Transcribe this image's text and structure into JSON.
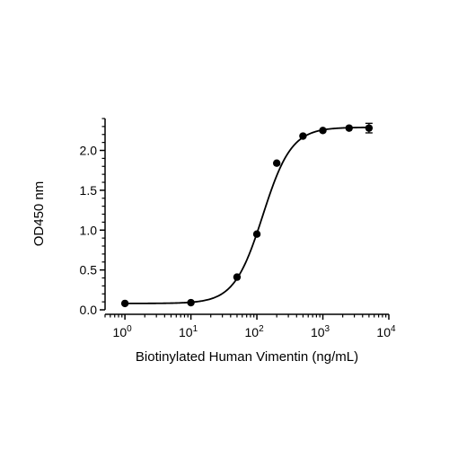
{
  "chart_data": {
    "type": "scatter",
    "title": "",
    "xlabel": "Biotinylated Human Vimentin (ng/mL)",
    "ylabel": "OD450 nm",
    "x_scale": "log",
    "xlim": [
      0.5,
      10000
    ],
    "ylim": [
      0,
      2.4
    ],
    "x_ticks": [
      {
        "value": 1,
        "base": "10",
        "exp": "0"
      },
      {
        "value": 10,
        "base": "10",
        "exp": "1"
      },
      {
        "value": 100,
        "base": "10",
        "exp": "2"
      },
      {
        "value": 1000,
        "base": "10",
        "exp": "3"
      },
      {
        "value": 10000,
        "base": "10",
        "exp": "4"
      }
    ],
    "y_ticks": [
      {
        "value": 0,
        "label": "0.0"
      },
      {
        "value": 0.5,
        "label": "0.5"
      },
      {
        "value": 1.0,
        "label": "1.0"
      },
      {
        "value": 1.5,
        "label": "1.5"
      },
      {
        "value": 2.0,
        "label": "2.0"
      }
    ],
    "grid": false,
    "series": [
      {
        "x": [
          1,
          10,
          50,
          100,
          200,
          500,
          1000,
          2500,
          5000
        ],
        "y": [
          0.08,
          0.09,
          0.41,
          0.95,
          1.84,
          2.18,
          2.25,
          2.28,
          2.28
        ],
        "error": [
          0.01,
          0.01,
          0.01,
          0.02,
          0.02,
          0.02,
          0.02,
          0.02,
          0.06
        ]
      }
    ],
    "fit": {
      "model": "4PL",
      "bottom": 0.08,
      "top": 2.29,
      "ec50": 123,
      "hill": 2.0
    }
  }
}
